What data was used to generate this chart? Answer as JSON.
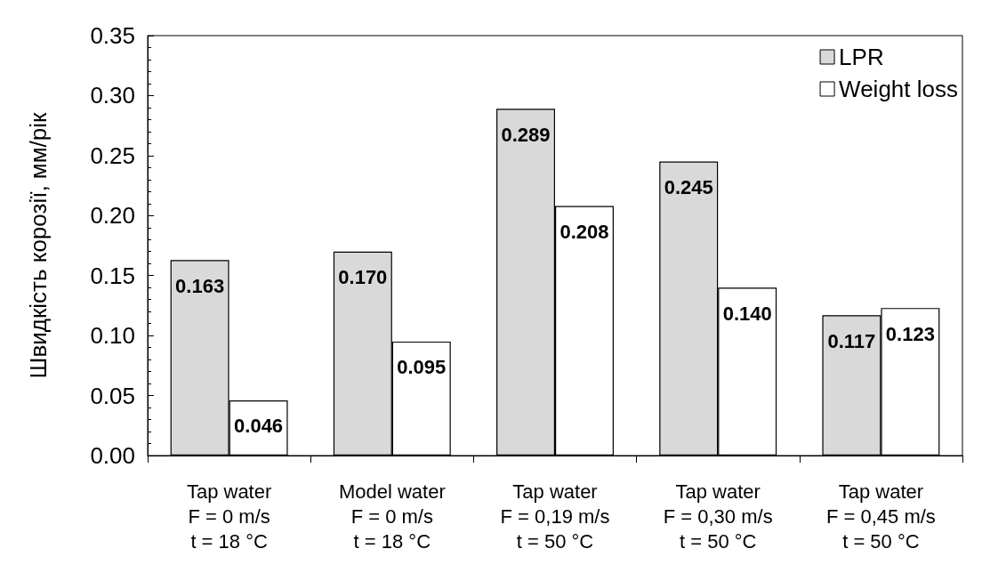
{
  "chart_data": {
    "type": "bar",
    "ylabel": "Швидкість корозії, мм/рік",
    "categories": [
      "Tap water\nF = 0 m/s\nt = 18 °C",
      "Model water\nF = 0 m/s\nt = 18 °C",
      "Tap water\nF = 0,19 m/s\nt = 50 °C",
      "Tap water\nF = 0,30 m/s\nt = 50 °C",
      "Tap water\nF = 0,45 m/s\nt = 50 °C"
    ],
    "series": [
      {
        "name": "LPR",
        "color": "#d9d9d9",
        "values": [
          0.163,
          0.17,
          0.289,
          0.245,
          0.117
        ],
        "value_labels": [
          "0.163",
          "0.170",
          "0.289",
          "0.245",
          "0.117"
        ]
      },
      {
        "name": "Weight loss",
        "color": "#ffffff",
        "values": [
          0.046,
          0.095,
          0.208,
          0.14,
          0.123
        ],
        "value_labels": [
          "0.046",
          "0.095",
          "0.208",
          "0.140",
          "0.123"
        ]
      }
    ],
    "ylim": [
      0,
      0.35
    ],
    "yticks": [
      {
        "value": 0,
        "label": "0.00"
      },
      0.05,
      {
        "value": 0.1,
        "label": "0.10"
      },
      0.15,
      {
        "value": 0.2,
        "label": "0.20"
      },
      0.25,
      {
        "value": 0.3,
        "label": "0.30"
      },
      0.35
    ],
    "grid": false,
    "legend": "top right"
  }
}
